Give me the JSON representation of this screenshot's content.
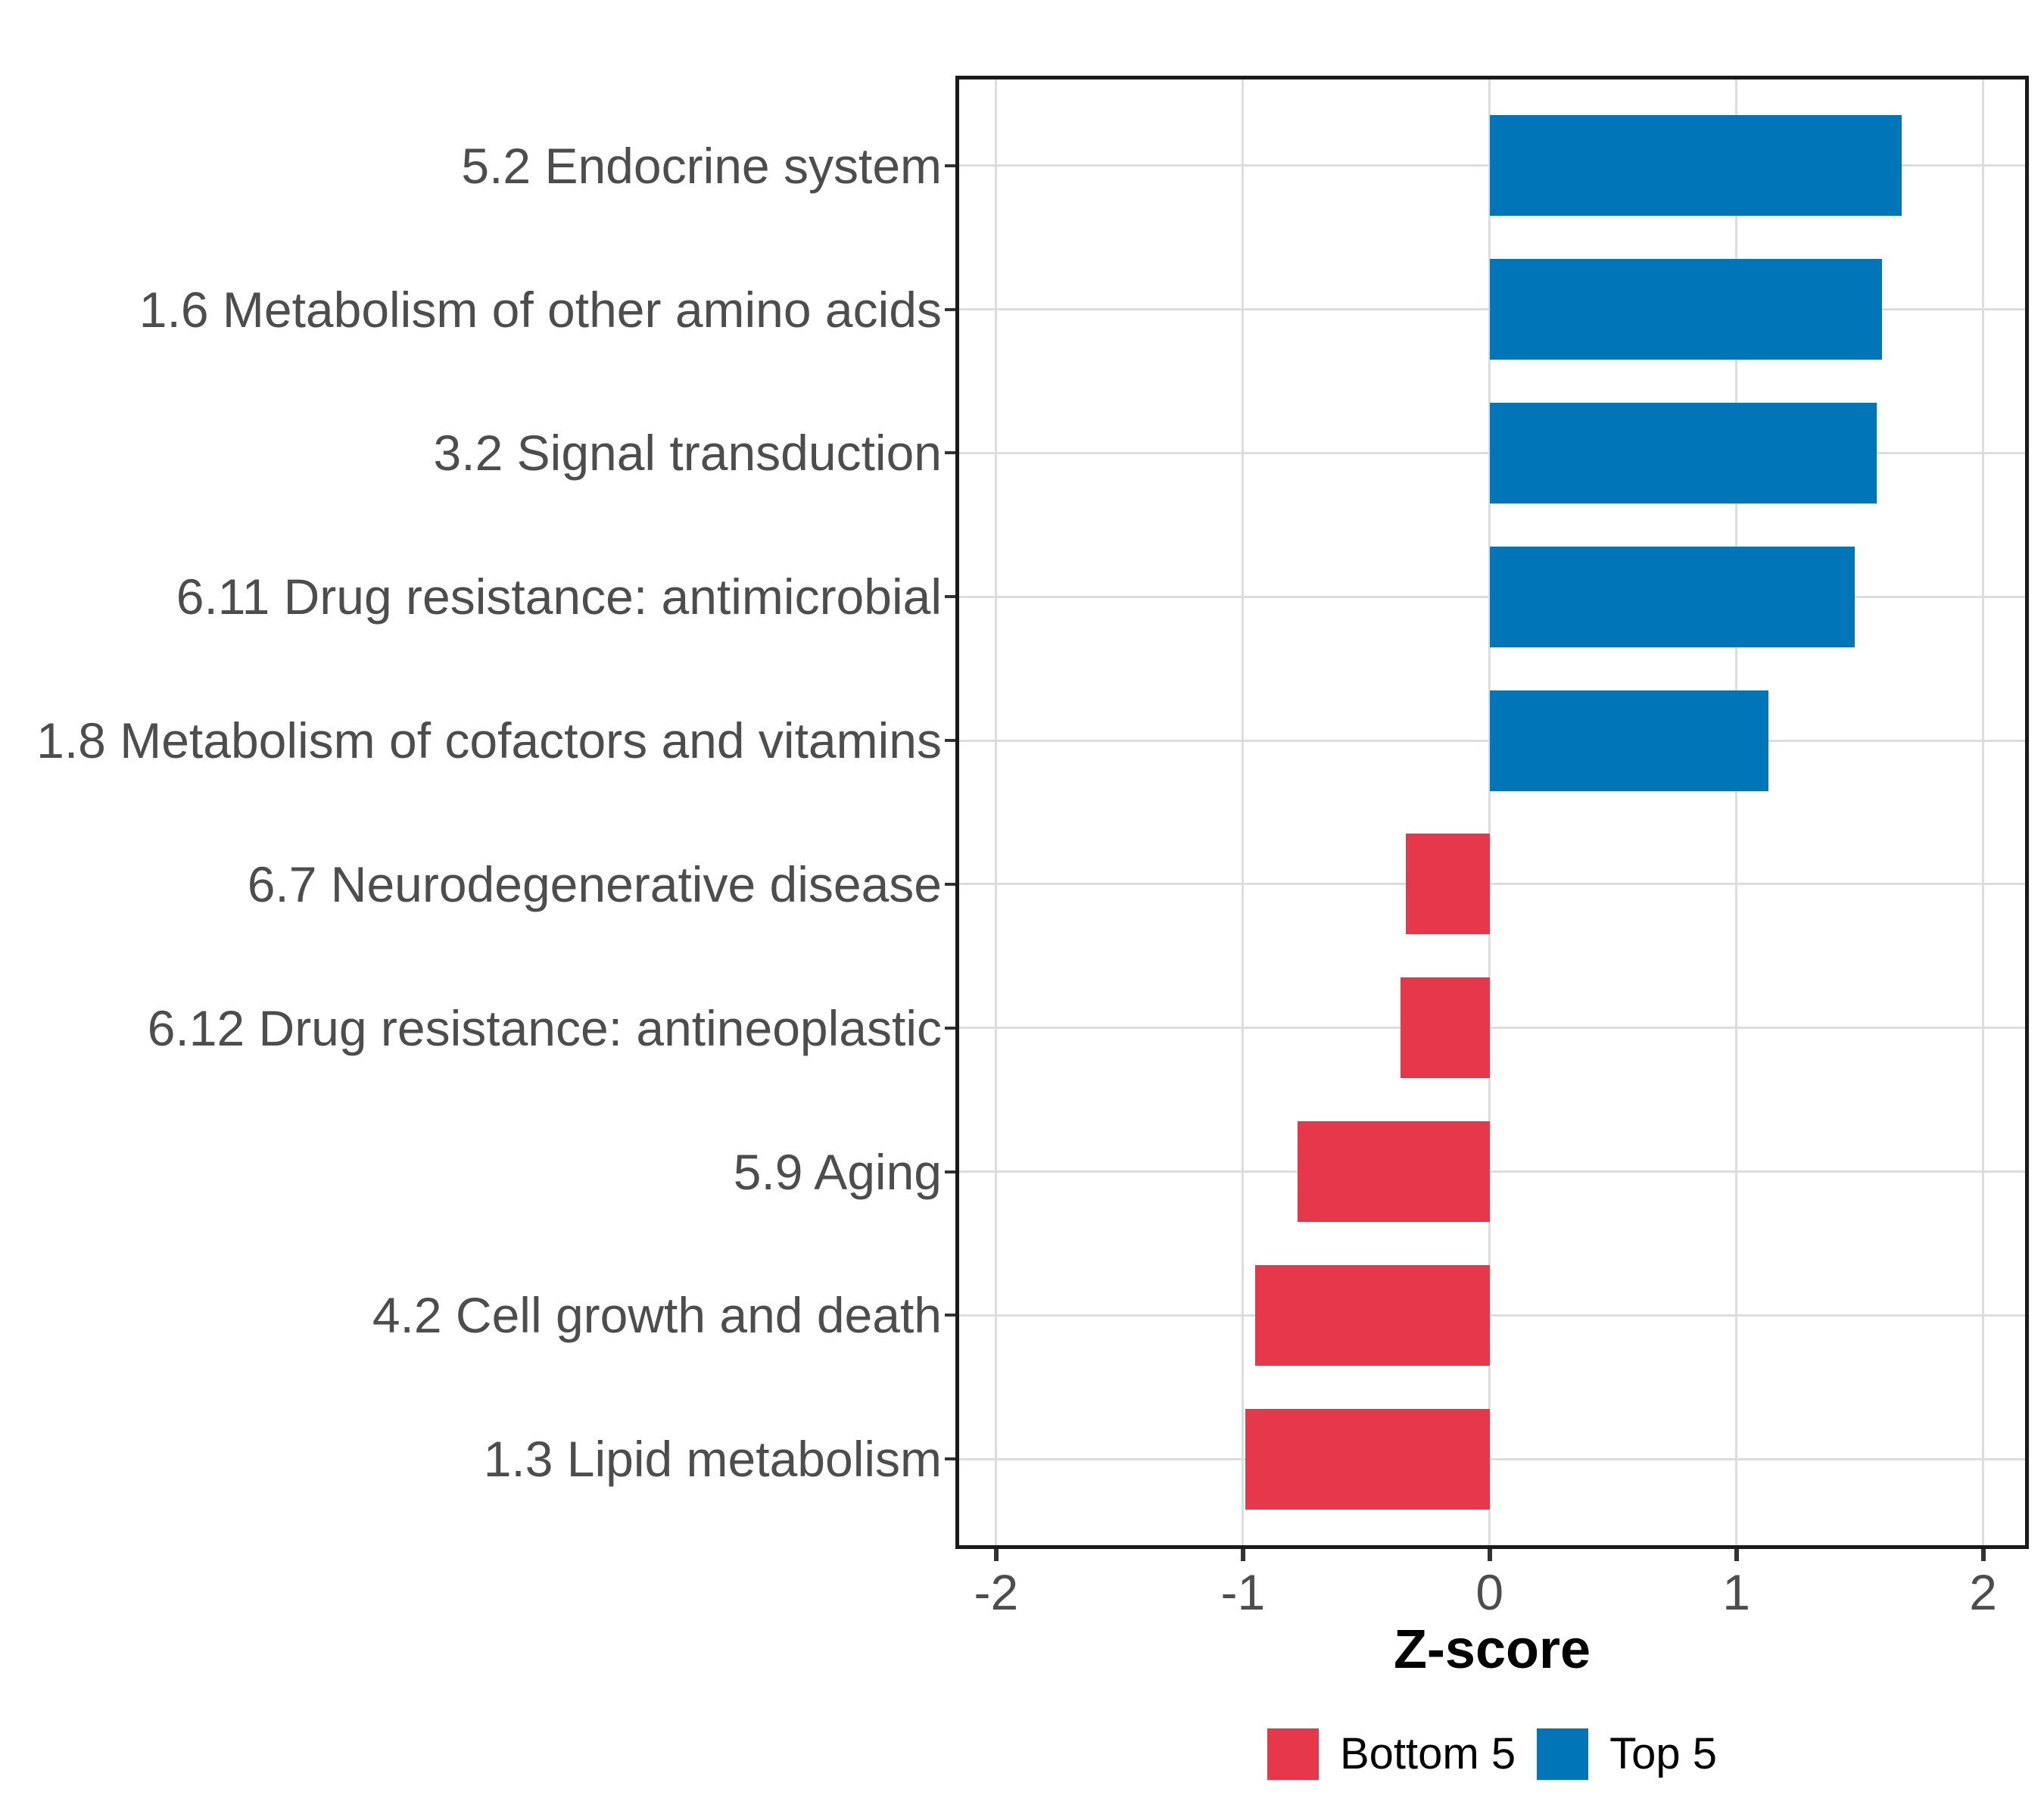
{
  "figure": {
    "background": "#FFFFFF"
  },
  "chart_data": {
    "type": "bar",
    "orientation": "horizontal",
    "title": "",
    "xlabel": "Z-score",
    "ylabel": "",
    "xlim": [
      -2.15,
      2.17
    ],
    "x_ticks": [
      -2,
      -1,
      0,
      1,
      2
    ],
    "grid": "major gridlines only, light gray on white panel, full black panel border",
    "legend_position": "bottom",
    "bar_width": 0.7,
    "categories": [
      "5.2 Endocrine system",
      "1.6 Metabolism of other amino acids",
      "3.2 Signal transduction",
      "6.11 Drug resistance: antimicrobial",
      "1.8 Metabolism of cofactors and vitamins",
      "6.7 Neurodegenerative disease",
      "6.12 Drug resistance: antineoplastic",
      "5.9 Aging",
      "4.2 Cell growth and death",
      "1.3 Lipid metabolism"
    ],
    "values": [
      1.67,
      1.59,
      1.57,
      1.48,
      1.13,
      -0.34,
      -0.36,
      -0.78,
      -0.95,
      -0.99
    ],
    "groups": [
      "Top 5",
      "Top 5",
      "Top 5",
      "Top 5",
      "Top 5",
      "Bottom 5",
      "Bottom 5",
      "Bottom 5",
      "Bottom 5",
      "Bottom 5"
    ],
    "group_colors": {
      "Top 5": "#0076B8",
      "Bottom 5": "#E7384B"
    },
    "legend": {
      "position": "bottom",
      "entries": [
        {
          "label": "Bottom 5",
          "color": "#E7384B"
        },
        {
          "label": "Top 5",
          "color": "#0076B8"
        }
      ]
    }
  },
  "colors": {
    "grid": "#DDDDDD",
    "axis_text": "#4D4D4D",
    "panel_border": "#1A1A1A",
    "tick": "#333333",
    "axis_title_text": "#000000",
    "background": "#FFFFFF"
  }
}
